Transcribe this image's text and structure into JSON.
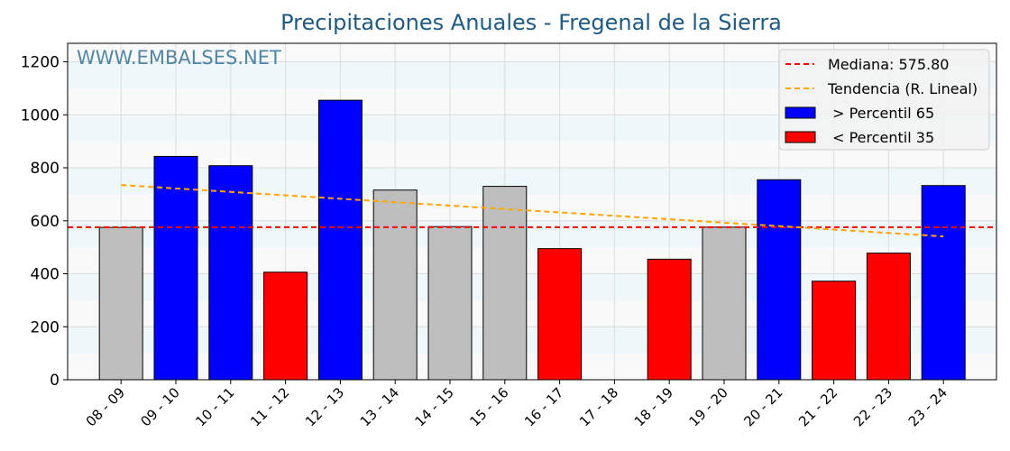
{
  "watermark": "WWW.EMBALSES.NET",
  "colors": {
    "above": "#0000ff",
    "below": "#ff0000",
    "normal": "#bebebe",
    "median": "#ff0000",
    "trend": "#ffa500",
    "band_light": "#eef7fa",
    "band_white": "#f9f9f9",
    "title": "#1f5a82"
  },
  "chart_data": {
    "type": "bar",
    "title": "Precipitaciones Anuales - Fregenal de la Sierra",
    "xlabel": "",
    "ylabel": "",
    "ylim": [
      0,
      1270
    ],
    "yticks": [
      0,
      200,
      400,
      600,
      800,
      1000,
      1200
    ],
    "grid": true,
    "legend_position": "top-right",
    "categories": [
      "08 - 09",
      "09 - 10",
      "10 - 11",
      "11 - 12",
      "12 - 13",
      "13 - 14",
      "14 - 15",
      "15 - 16",
      "16 - 17",
      "17 - 18",
      "18 - 19",
      "19 - 20",
      "20 - 21",
      "21 - 22",
      "22 - 23",
      "23 - 24"
    ],
    "values": [
      575,
      843,
      808,
      406,
      1055,
      716,
      578,
      730,
      495,
      0,
      455,
      576,
      755,
      372,
      478,
      733
    ],
    "classes": [
      "normal",
      "above",
      "above",
      "below",
      "above",
      "normal",
      "normal",
      "normal",
      "below",
      "normal",
      "below",
      "normal",
      "above",
      "below",
      "below",
      "above"
    ],
    "median": 575.8,
    "trend": {
      "start": 735,
      "end": 541
    },
    "legend": [
      {
        "key": "median",
        "label": "Mediana: 575.80"
      },
      {
        "key": "trend",
        "label": "Tendencia (R. Lineal)"
      },
      {
        "key": "above",
        "label": " > Percentil 65"
      },
      {
        "key": "below",
        "label": " < Percentil 35"
      }
    ]
  }
}
